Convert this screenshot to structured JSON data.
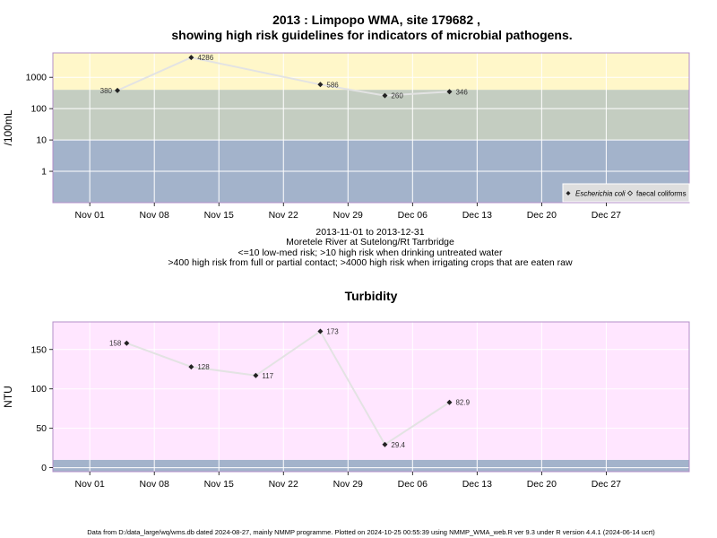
{
  "colors": {
    "blue_band": "#a3b3cb",
    "green_band": "#c4cdc1",
    "yellow_band": "#fff7c9",
    "pink_band": "#ffe6ff",
    "panel_border": "#b38fc8",
    "grid": "#ffffff",
    "line": "#e3e3e3",
    "point": "#222222"
  },
  "chart_data": [
    {
      "type": "line",
      "title": "2013 : Limpopo WMA, site 179682 ,",
      "subtitle": "showing high risk guidelines for indicators of microbial pathogens.",
      "ylabel": "/100mL",
      "yscale": "log",
      "ylim": [
        0.1,
        6000
      ],
      "yticks": [
        1,
        10,
        100,
        1000
      ],
      "ytick_labels": [
        "1",
        "10",
        "100",
        "1000"
      ],
      "xlim": [
        "2013-10-28",
        "2014-01-05"
      ],
      "xticks": [
        "2013-11-01",
        "2013-11-08",
        "2013-11-15",
        "2013-11-22",
        "2013-11-29",
        "2013-12-06",
        "2013-12-13",
        "2013-12-20",
        "2013-12-27"
      ],
      "xtick_labels": [
        "Nov 01",
        "Nov 08",
        "Nov 15",
        "Nov 22",
        "Nov 29",
        "Dec 06",
        "Dec 13",
        "Dec 20",
        "Dec 27"
      ],
      "bands": [
        {
          "from": 0.1,
          "to": 10,
          "color": "#a3b3cb"
        },
        {
          "from": 10,
          "to": 400,
          "color": "#c4cdc1"
        },
        {
          "from": 400,
          "to": 6000,
          "color": "#fff7c9"
        }
      ],
      "grid": true,
      "series": [
        {
          "name": "Escherichia coli",
          "marker": "filled-diamond",
          "x": [
            "2013-11-04",
            "2013-11-12",
            "2013-11-26",
            "2013-12-03",
            "2013-12-10"
          ],
          "y": [
            380,
            4286,
            586,
            260,
            346
          ],
          "labels": [
            "380",
            "4286",
            "586",
            "260",
            "346"
          ]
        },
        {
          "name": "faecal coliforms",
          "marker": "open-diamond",
          "x": [],
          "y": [],
          "labels": []
        }
      ],
      "legend_position": "bottom-right",
      "caption_lines": [
        "2013-11-01 to 2013-12-31",
        "Moretele River at Sutelong/Rt Tarrbridge",
        "<=10 low-med risk; >10 high risk when drinking untreated water",
        ">400 high risk from full or partial contact; >4000 high risk when irrigating crops that are eaten raw"
      ]
    },
    {
      "type": "line",
      "title": "Turbidity",
      "ylabel": "NTU",
      "yscale": "linear",
      "ylim": [
        -5,
        185
      ],
      "yticks": [
        0,
        50,
        100,
        150
      ],
      "ytick_labels": [
        "0",
        "50",
        "100",
        "150"
      ],
      "xlim": [
        "2013-10-28",
        "2014-01-05"
      ],
      "xticks": [
        "2013-11-01",
        "2013-11-08",
        "2013-11-15",
        "2013-11-22",
        "2013-11-29",
        "2013-12-06",
        "2013-12-13",
        "2013-12-20",
        "2013-12-27"
      ],
      "xtick_labels": [
        "Nov 01",
        "Nov 08",
        "Nov 15",
        "Nov 22",
        "Nov 29",
        "Dec 06",
        "Dec 13",
        "Dec 20",
        "Dec 27"
      ],
      "bands": [
        {
          "from": -5,
          "to": 10,
          "color": "#a3b3cb"
        },
        {
          "from": 10,
          "to": 185,
          "color": "#ffe6ff"
        }
      ],
      "grid": true,
      "series": [
        {
          "marker": "filled-diamond",
          "x": [
            "2013-11-05",
            "2013-11-12",
            "2013-11-19",
            "2013-11-26",
            "2013-12-03",
            "2013-12-10"
          ],
          "y": [
            158,
            128,
            117,
            173,
            29.4,
            82.9
          ],
          "labels": [
            "158",
            "128",
            "117",
            "173",
            "29.4",
            "82.9"
          ]
        }
      ]
    }
  ],
  "footer": "Data from D:/data_large/wq/wms.db dated 2024-08-27, mainly NMMP programme. Plotted on 2024-10-25 00:55:39 using NMMP_WMA_web.R ver 9.3 under R version 4.4.1 (2024-06-14 ucrt)"
}
